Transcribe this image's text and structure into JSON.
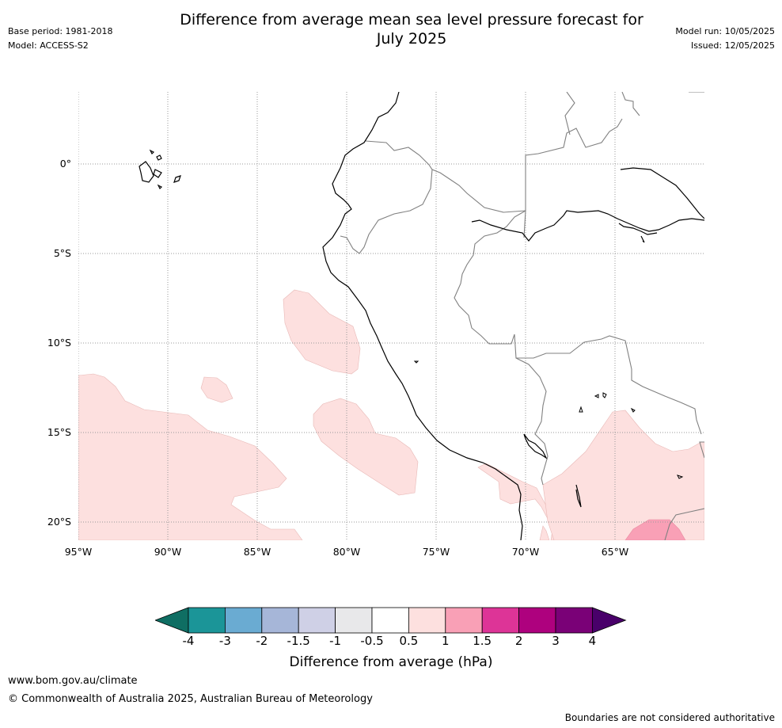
{
  "header": {
    "title_line1": "Difference from average mean sea level pressure forecast for",
    "title_line2": "July 2025",
    "base_period": "Base period: 1981-2018",
    "model": "Model: ACCESS-S2",
    "model_run": "Model run: 10/05/2025",
    "issued": "Issued: 12/05/2025"
  },
  "map": {
    "lat_labels": [
      "0°",
      "5°S",
      "10°S",
      "15°S",
      "20°S"
    ],
    "lon_labels": [
      "95°W",
      "90°W",
      "85°W",
      "80°W",
      "75°W",
      "70°W",
      "65°W"
    ],
    "coastline_color": "#000000",
    "border_color": "#808080",
    "gridline_color": "#999999"
  },
  "colorbar": {
    "ticks": [
      "-4",
      "-3",
      "-2",
      "-1.5",
      "-1",
      "-0.5",
      "0.5",
      "1",
      "1.5",
      "2",
      "3",
      "4"
    ],
    "colors": [
      "#0f6e63",
      "#1b9598",
      "#6aabd2",
      "#a6b6d8",
      "#cfd0e6",
      "#e8e8ea",
      "#ffffff",
      "#fde0df",
      "#f9a0b6",
      "#dd3497",
      "#ae017e",
      "#7a0177",
      "#49006a"
    ],
    "label": "Difference from average (hPa)"
  },
  "footer": {
    "url": "www.bom.gov.au/climate",
    "copyright": "© Commonwealth of Australia 2025, Australian Bureau of Meteorology",
    "disclaimer": "Boundaries are not considered authoritative"
  }
}
